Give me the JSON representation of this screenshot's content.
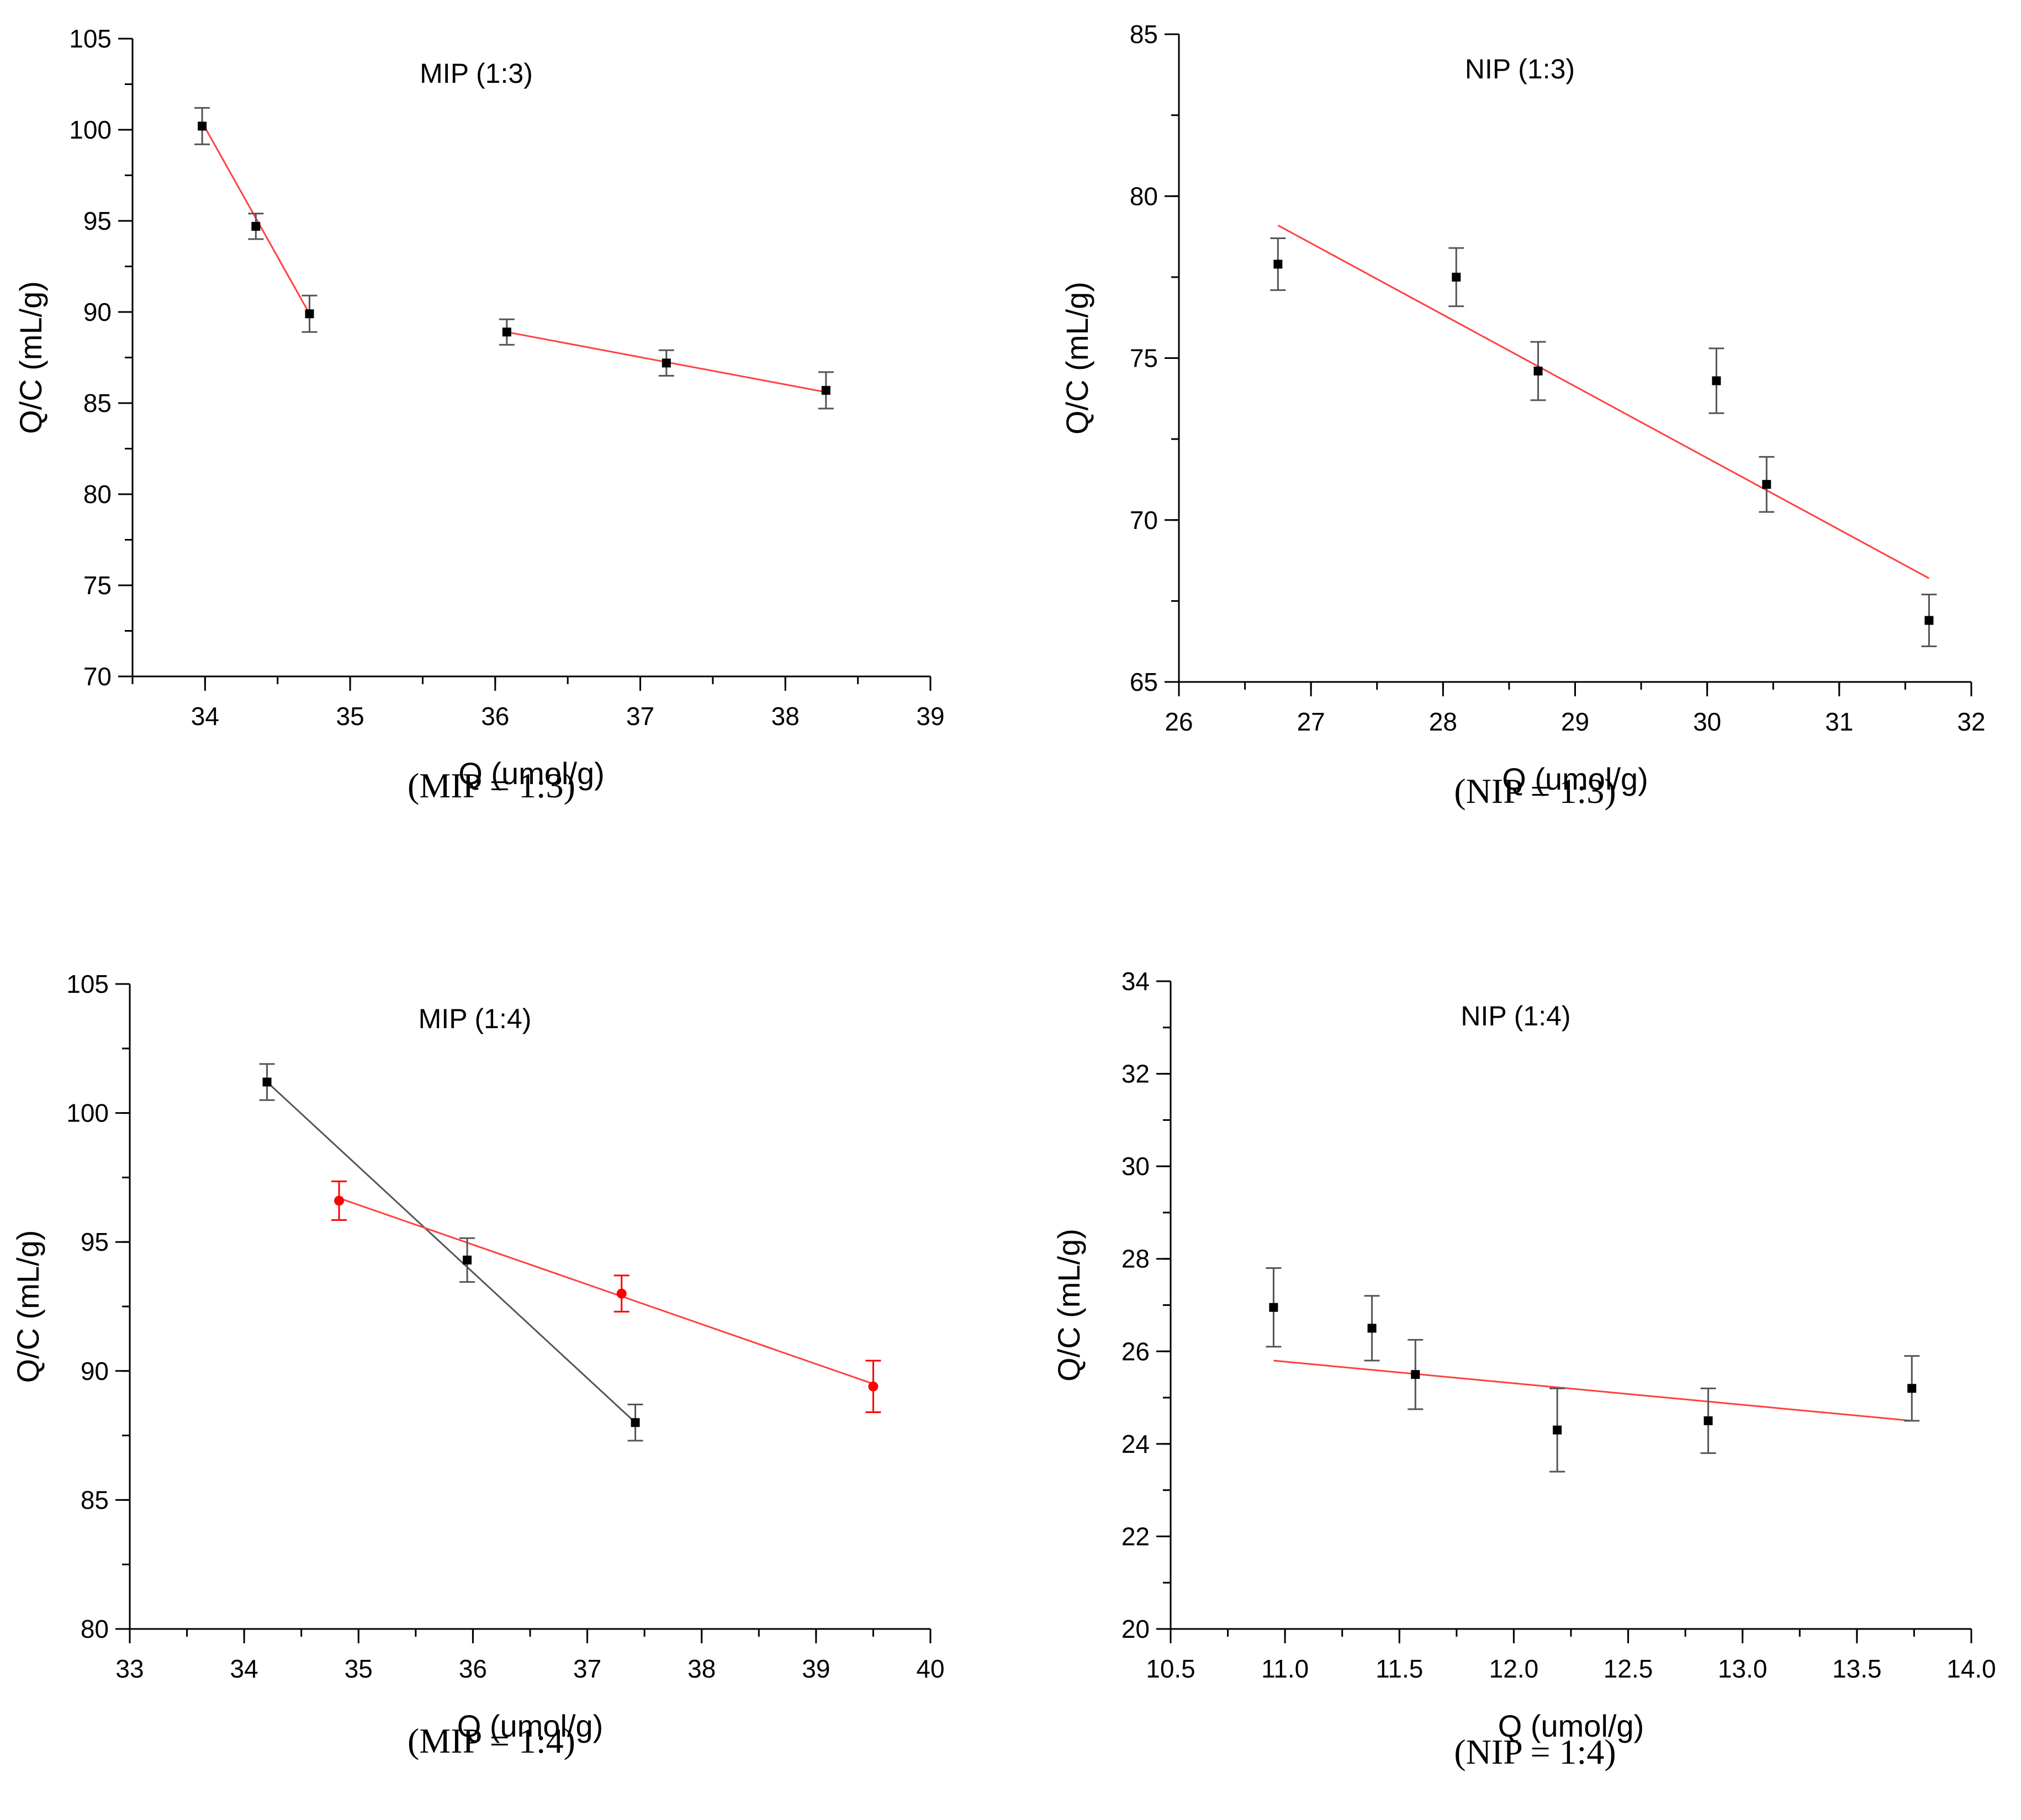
{
  "chart_data": [
    {
      "type": "scatter",
      "panel_title": "MIP (1:3)",
      "caption": "(MIP = 1:3)",
      "xlabel": "Q (umol/g)",
      "ylabel": "Q/C (mL/g)",
      "xlim": [
        33.5,
        39
      ],
      "ylim": [
        70,
        105
      ],
      "xticks": [
        34,
        35,
        36,
        37,
        38,
        39
      ],
      "yticks": [
        70,
        75,
        80,
        85,
        90,
        95,
        100,
        105
      ],
      "xtick_labels": [
        "34",
        "35",
        "36",
        "37",
        "38",
        "39"
      ],
      "ytick_labels": [
        "70",
        "75",
        "80",
        "85",
        "90",
        "95",
        "100",
        "105"
      ],
      "x_minor_step": 0.5,
      "y_minor_step": 2.5,
      "series": [
        {
          "marker": "square",
          "color": "#000000",
          "errorbar_color": "#555555",
          "points": [
            {
              "x": 33.98,
              "y": 100.2,
              "err": 1.0
            },
            {
              "x": 34.35,
              "y": 94.7,
              "err": 0.7
            },
            {
              "x": 34.72,
              "y": 89.9,
              "err": 1.0
            },
            {
              "x": 36.08,
              "y": 88.9,
              "err": 0.7
            },
            {
              "x": 37.18,
              "y": 87.2,
              "err": 0.7
            },
            {
              "x": 38.28,
              "y": 85.7,
              "err": 1.0
            }
          ]
        }
      ],
      "fit_lines": [
        {
          "color": "#ff4040",
          "x": [
            33.98,
            34.72
          ],
          "y": [
            100.4,
            89.9
          ]
        },
        {
          "color": "#ff4040",
          "x": [
            36.08,
            38.28
          ],
          "y": [
            88.9,
            85.6
          ]
        }
      ]
    },
    {
      "type": "scatter",
      "panel_title": "NIP (1:3)",
      "caption": "(NIP = 1:3)",
      "xlabel": "Q (umol/g)",
      "ylabel": "Q/C (mL/g)",
      "xlim": [
        26,
        32
      ],
      "ylim": [
        65,
        85
      ],
      "xticks": [
        26,
        27,
        28,
        29,
        30,
        31,
        32
      ],
      "yticks": [
        65,
        70,
        75,
        80,
        85
      ],
      "xtick_labels": [
        "26",
        "27",
        "28",
        "29",
        "30",
        "31",
        "32"
      ],
      "ytick_labels": [
        "65",
        "70",
        "75",
        "80",
        "85"
      ],
      "x_minor_step": 0.5,
      "y_minor_step": 2.5,
      "series": [
        {
          "marker": "square",
          "color": "#000000",
          "errorbar_color": "#555555",
          "points": [
            {
              "x": 26.75,
              "y": 77.9,
              "err": 0.8
            },
            {
              "x": 28.1,
              "y": 77.5,
              "err": 0.9
            },
            {
              "x": 28.72,
              "y": 74.6,
              "err": 0.9
            },
            {
              "x": 30.07,
              "y": 74.3,
              "err": 1.0
            },
            {
              "x": 30.45,
              "y": 71.1,
              "err": 0.85
            },
            {
              "x": 31.68,
              "y": 66.9,
              "err": 0.8
            }
          ]
        }
      ],
      "fit_lines": [
        {
          "color": "#ff4040",
          "x": [
            26.75,
            31.68
          ],
          "y": [
            79.1,
            68.2
          ]
        }
      ]
    },
    {
      "type": "scatter",
      "panel_title": "MIP (1:4)",
      "caption": "(MIP = 1:4)",
      "xlabel": "Q (umol/g)",
      "ylabel": "Q/C (mL/g)",
      "xlim": [
        33,
        40
      ],
      "ylim": [
        80,
        105
      ],
      "xticks": [
        33,
        34,
        35,
        36,
        37,
        38,
        39,
        40
      ],
      "yticks": [
        80,
        85,
        90,
        95,
        100,
        105
      ],
      "xtick_labels": [
        "33",
        "34",
        "35",
        "36",
        "37",
        "38",
        "39",
        "40"
      ],
      "ytick_labels": [
        "80",
        "85",
        "90",
        "95",
        "100",
        "105"
      ],
      "x_minor_step": 0.5,
      "y_minor_step": 2.5,
      "series": [
        {
          "marker": "square",
          "color": "#000000",
          "errorbar_color": "#555555",
          "points": [
            {
              "x": 34.2,
              "y": 101.2,
              "err": 0.7
            },
            {
              "x": 35.95,
              "y": 94.3,
              "err": 0.85
            },
            {
              "x": 37.42,
              "y": 88.0,
              "err": 0.7
            }
          ]
        },
        {
          "marker": "circle",
          "color": "#ff0000",
          "errorbar_color": "#ff0000",
          "points": [
            {
              "x": 34.83,
              "y": 96.6,
              "err": 0.75
            },
            {
              "x": 37.3,
              "y": 93.0,
              "err": 0.7
            },
            {
              "x": 39.5,
              "y": 89.4,
              "err": 1.0
            }
          ]
        }
      ],
      "fit_lines": [
        {
          "color": "#555555",
          "x": [
            34.2,
            37.42
          ],
          "y": [
            101.2,
            88.0
          ]
        },
        {
          "color": "#ff4040",
          "x": [
            34.83,
            39.5
          ],
          "y": [
            96.7,
            89.5
          ]
        }
      ]
    },
    {
      "type": "scatter",
      "panel_title": "NIP (1:4)",
      "caption": "(NIP = 1:4)",
      "xlabel": "Q (umol/g)",
      "ylabel": "Q/C (mL/g)",
      "xlim": [
        10.5,
        14.0
      ],
      "ylim": [
        20,
        34
      ],
      "xticks": [
        10.5,
        11.0,
        11.5,
        12.0,
        12.5,
        13.0,
        13.5,
        14.0
      ],
      "yticks": [
        20,
        22,
        24,
        26,
        28,
        30,
        32,
        34
      ],
      "xtick_labels": [
        "10.5",
        "11.0",
        "11.5",
        "12.0",
        "12.5",
        "13.0",
        "13.5",
        "14.0"
      ],
      "ytick_labels": [
        "20",
        "22",
        "24",
        "26",
        "28",
        "30",
        "32",
        "34"
      ],
      "x_minor_step": 0.25,
      "y_minor_step": 1,
      "series": [
        {
          "marker": "square",
          "color": "#000000",
          "errorbar_color": "#555555",
          "points": [
            {
              "x": 10.95,
              "y": 26.95,
              "err": 0.85
            },
            {
              "x": 11.38,
              "y": 26.5,
              "err": 0.7
            },
            {
              "x": 11.57,
              "y": 25.5,
              "err": 0.75
            },
            {
              "x": 12.19,
              "y": 24.3,
              "err": 0.9
            },
            {
              "x": 12.85,
              "y": 24.5,
              "err": 0.7
            },
            {
              "x": 13.74,
              "y": 25.2,
              "err": 0.7
            }
          ]
        }
      ],
      "fit_lines": [
        {
          "color": "#ff4040",
          "x": [
            10.95,
            13.74
          ],
          "y": [
            25.8,
            24.5
          ]
        }
      ]
    }
  ]
}
